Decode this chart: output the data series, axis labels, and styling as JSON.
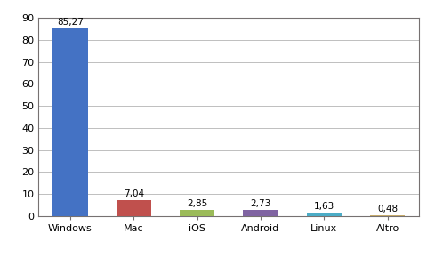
{
  "categories": [
    "Windows",
    "Mac",
    "iOS",
    "Android",
    "Linux",
    "Altro"
  ],
  "values": [
    85.27,
    7.04,
    2.85,
    2.73,
    1.63,
    0.48
  ],
  "labels": [
    "85,27",
    "7,04",
    "2,85",
    "2,73",
    "1,63",
    "0,48"
  ],
  "bar_colors": [
    "#4472C4",
    "#C0504D",
    "#9BBB59",
    "#8064A2",
    "#4BACC6",
    "#C4A96A"
  ],
  "ylim": [
    0,
    90
  ],
  "yticks": [
    0,
    10,
    20,
    30,
    40,
    50,
    60,
    70,
    80,
    90
  ],
  "background_color": "#FFFFFF",
  "grid_color": "#BFBFBF",
  "label_fontsize": 7.5,
  "tick_fontsize": 8,
  "border_color": "#767171"
}
